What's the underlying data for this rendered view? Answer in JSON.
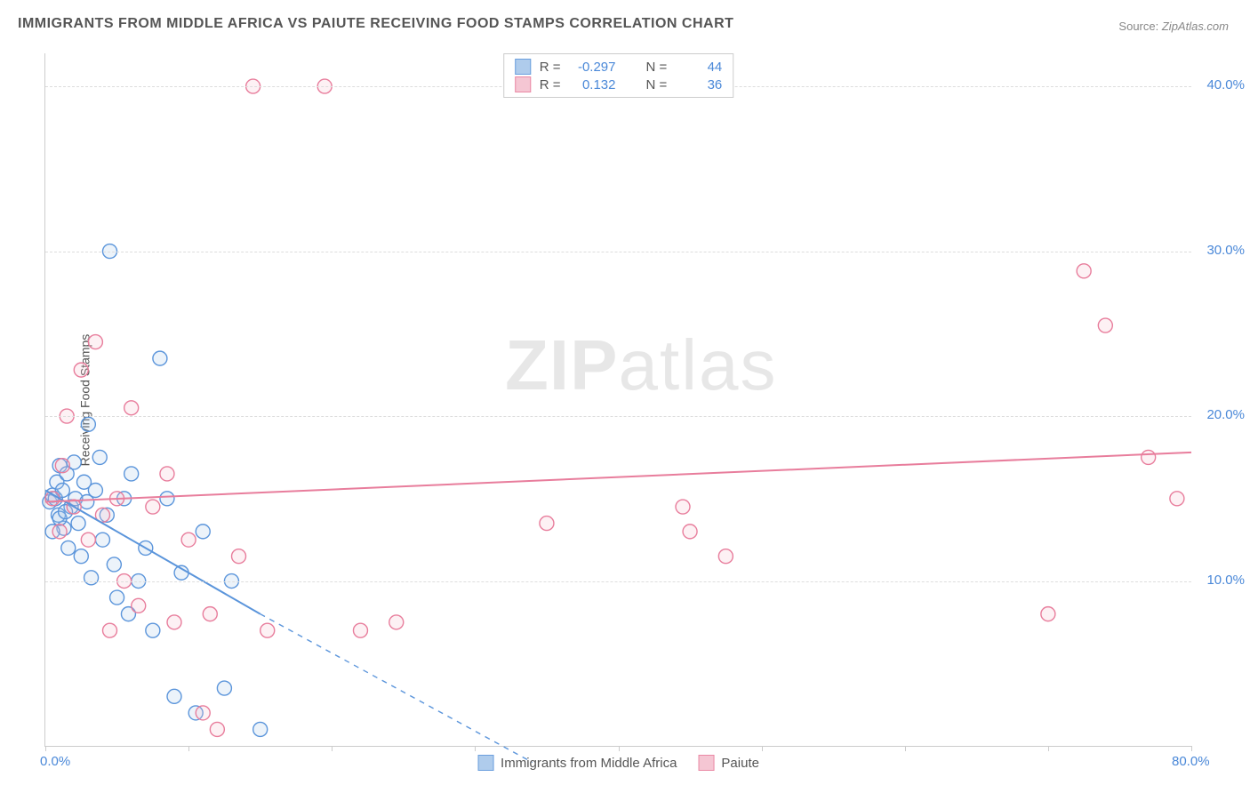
{
  "title": "IMMIGRANTS FROM MIDDLE AFRICA VS PAIUTE RECEIVING FOOD STAMPS CORRELATION CHART",
  "source_label": "Source:",
  "source_name": "ZipAtlas.com",
  "watermark": {
    "bold": "ZIP",
    "rest": "atlas"
  },
  "y_axis_title": "Receiving Food Stamps",
  "chart": {
    "type": "scatter",
    "background_color": "#ffffff",
    "grid_color": "#dddddd",
    "axis_color": "#cccccc",
    "xlim": [
      0,
      80
    ],
    "ylim": [
      0,
      42
    ],
    "x_ticks": [
      0,
      10,
      20,
      30,
      40,
      50,
      60,
      70,
      80
    ],
    "x_tick_labels": {
      "0": "0.0%",
      "80": "80.0%"
    },
    "x_tick_color": "#4a88d8",
    "y_ticks": [
      10,
      20,
      30,
      40
    ],
    "y_tick_labels": {
      "10": "10.0%",
      "20": "20.0%",
      "30": "30.0%",
      "40": "40.0%"
    },
    "y_tick_color": "#4a88d8",
    "marker_radius": 8,
    "marker_stroke_width": 1.4,
    "marker_fill_opacity": 0.22,
    "regression_line_width": 2,
    "series": [
      {
        "id": "middle_africa",
        "label": "Immigrants from Middle Africa",
        "color_stroke": "#5b95db",
        "color_fill": "#a7c7ea",
        "R": "-0.297",
        "N": "44",
        "regression": {
          "x1": 0,
          "y1": 15.5,
          "x2_solid": 15,
          "y2_solid": 8.0,
          "x2_dash": 34,
          "y2_dash": -1.0
        },
        "points": [
          [
            0.3,
            14.8
          ],
          [
            0.5,
            15.2
          ],
          [
            0.7,
            15.0
          ],
          [
            0.8,
            16.0
          ],
          [
            0.9,
            14.0
          ],
          [
            1.0,
            17.0
          ],
          [
            1.2,
            15.5
          ],
          [
            1.3,
            13.2
          ],
          [
            1.5,
            16.5
          ],
          [
            1.6,
            12.0
          ],
          [
            1.8,
            14.5
          ],
          [
            2.0,
            17.2
          ],
          [
            2.1,
            15.0
          ],
          [
            2.3,
            13.5
          ],
          [
            2.5,
            11.5
          ],
          [
            2.7,
            16.0
          ],
          [
            2.9,
            14.8
          ],
          [
            3.0,
            19.5
          ],
          [
            3.2,
            10.2
          ],
          [
            3.5,
            15.5
          ],
          [
            3.8,
            17.5
          ],
          [
            4.0,
            12.5
          ],
          [
            4.3,
            14.0
          ],
          [
            4.5,
            30.0
          ],
          [
            4.8,
            11.0
          ],
          [
            5.0,
            9.0
          ],
          [
            5.5,
            15.0
          ],
          [
            5.8,
            8.0
          ],
          [
            6.0,
            16.5
          ],
          [
            6.5,
            10.0
          ],
          [
            7.0,
            12.0
          ],
          [
            7.5,
            7.0
          ],
          [
            8.0,
            23.5
          ],
          [
            8.5,
            15.0
          ],
          [
            9.0,
            3.0
          ],
          [
            9.5,
            10.5
          ],
          [
            10.5,
            2.0
          ],
          [
            11.0,
            13.0
          ],
          [
            12.5,
            3.5
          ],
          [
            13.0,
            10.0
          ],
          [
            15.0,
            1.0
          ],
          [
            0.5,
            13.0
          ],
          [
            1.0,
            13.8
          ],
          [
            1.4,
            14.2
          ]
        ]
      },
      {
        "id": "paiute",
        "label": "Paiute",
        "color_stroke": "#e87d9c",
        "color_fill": "#f4c0cf",
        "R": "0.132",
        "N": "36",
        "regression": {
          "x1": 0,
          "y1": 14.8,
          "x2_solid": 80,
          "y2_solid": 17.8,
          "x2_dash": 80,
          "y2_dash": 17.8
        },
        "points": [
          [
            0.5,
            15.0
          ],
          [
            1.0,
            13.0
          ],
          [
            1.5,
            20.0
          ],
          [
            2.0,
            14.5
          ],
          [
            2.5,
            22.8
          ],
          [
            3.0,
            12.5
          ],
          [
            3.5,
            24.5
          ],
          [
            4.0,
            14.0
          ],
          [
            4.5,
            7.0
          ],
          [
            5.0,
            15.0
          ],
          [
            5.5,
            10.0
          ],
          [
            6.0,
            20.5
          ],
          [
            6.5,
            8.5
          ],
          [
            7.5,
            14.5
          ],
          [
            8.5,
            16.5
          ],
          [
            9.0,
            7.5
          ],
          [
            10.0,
            12.5
          ],
          [
            11.0,
            2.0
          ],
          [
            11.5,
            8.0
          ],
          [
            12.0,
            1.0
          ],
          [
            13.5,
            11.5
          ],
          [
            14.5,
            40.0
          ],
          [
            15.5,
            7.0
          ],
          [
            19.5,
            40.0
          ],
          [
            22.0,
            7.0
          ],
          [
            24.5,
            7.5
          ],
          [
            35.0,
            13.5
          ],
          [
            44.5,
            14.5
          ],
          [
            45.0,
            13.0
          ],
          [
            47.5,
            11.5
          ],
          [
            70.0,
            8.0
          ],
          [
            72.5,
            28.8
          ],
          [
            74.0,
            25.5
          ],
          [
            77.0,
            17.5
          ],
          [
            79.0,
            15.0
          ],
          [
            1.2,
            17.0
          ]
        ]
      }
    ]
  },
  "legend_bottom": [
    {
      "series": "middle_africa",
      "label": "Immigrants from Middle Africa"
    },
    {
      "series": "paiute",
      "label": "Paiute"
    }
  ]
}
